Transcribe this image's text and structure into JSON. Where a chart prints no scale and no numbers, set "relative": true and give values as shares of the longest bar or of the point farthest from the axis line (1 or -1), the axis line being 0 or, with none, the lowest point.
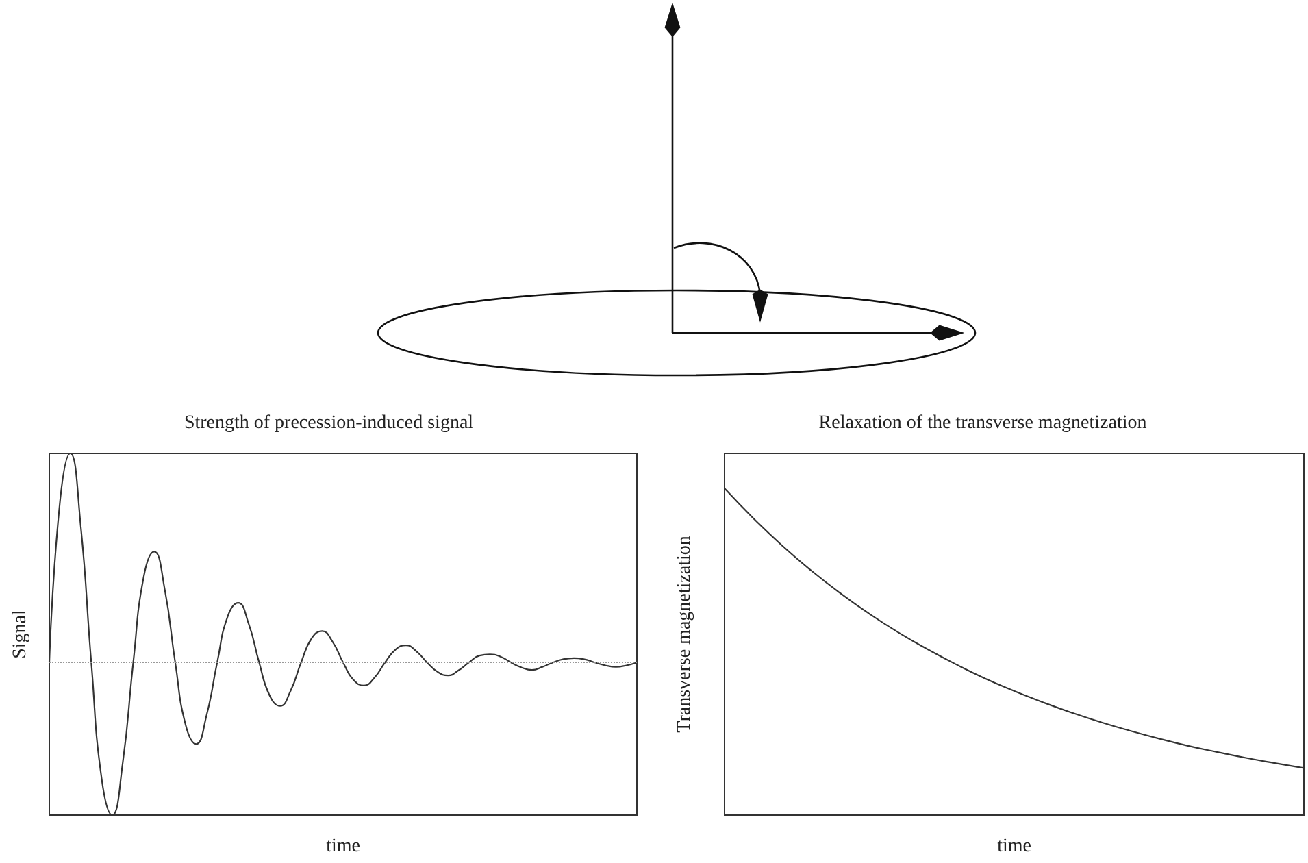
{
  "chart_data": [
    {
      "type": "line",
      "title": "Strength of precession-induced signal",
      "xlabel": "time",
      "ylabel": "Signal",
      "relative": true,
      "categories": [
        null,
        null,
        null,
        null,
        null,
        null,
        null,
        null,
        null,
        null,
        null,
        null,
        null,
        null,
        null,
        null,
        null,
        null,
        null,
        null,
        null,
        null,
        null,
        null,
        null,
        null,
        null,
        null,
        null,
        null,
        null,
        null,
        null,
        null,
        null,
        null,
        null,
        null,
        null,
        null,
        null,
        null,
        null,
        null,
        null,
        null,
        null,
        null,
        null,
        null,
        null,
        null,
        null,
        null,
        null,
        null,
        null
      ],
      "series": [
        {
          "color": "#333333",
          "values": [
            0,
            0.76,
            1,
            0.65,
            0,
            -0.56,
            -0.73,
            -0.48,
            0,
            0.41,
            0.53,
            0.35,
            0,
            -0.3,
            -0.39,
            -0.25,
            0,
            0.22,
            0.285,
            0.185,
            0,
            -0.158,
            -0.208,
            -0.135,
            0,
            0.115,
            0.15,
            0.099,
            0,
            -0.084,
            -0.11,
            -0.072,
            0,
            0.062,
            0.082,
            0.053,
            0,
            -0.045,
            -0.062,
            -0.038,
            0,
            0.033,
            0.039,
            0.028,
            0,
            -0.024,
            -0.036,
            -0.021,
            0,
            0.016,
            0.021,
            0.015,
            0,
            -0.014,
            -0.021,
            -0.014,
            0
          ]
        }
      ],
      "ref_lines": [
        {
          "axis": "y",
          "value": 0,
          "color": "#999999",
          "line_style": "dotted"
        }
      ]
    },
    {
      "type": "line",
      "title": "Relaxation of the transverse magnetization",
      "xlabel": "time",
      "ylabel": "Transverse magnetization",
      "relative": true,
      "categories": [
        null,
        null,
        null,
        null,
        null,
        null,
        null,
        null,
        null,
        null,
        null,
        null,
        null,
        null,
        null,
        null,
        null,
        null,
        null,
        null,
        null
      ],
      "series": [
        {
          "color": "#333333",
          "values": [
            1,
            0.908,
            0.824,
            0.748,
            0.679,
            0.616,
            0.559,
            0.508,
            0.461,
            0.418,
            0.38,
            0.345,
            0.313,
            0.284,
            0.258,
            0.234,
            0.212,
            0.193,
            0.175,
            0.159,
            0.144
          ]
        }
      ]
    }
  ]
}
